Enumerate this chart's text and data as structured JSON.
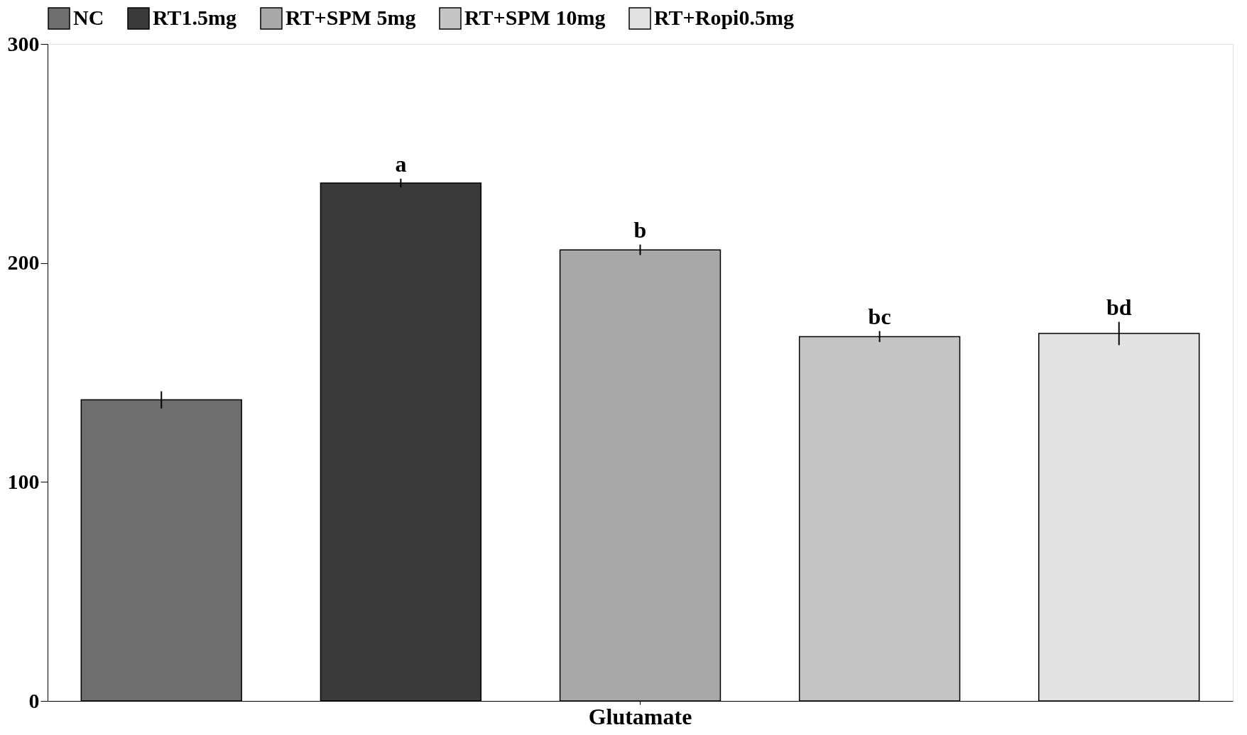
{
  "chart_data": {
    "type": "bar",
    "categories": [
      "Glutamate"
    ],
    "series": [
      {
        "name": "NC",
        "color": "#6e6e6e",
        "values": [
          137.5
        ],
        "errors": [
          3.9
        ]
      },
      {
        "name": "RT1.5mg",
        "color": "#3a3a3a",
        "values": [
          236.5
        ],
        "errors": [
          2
        ],
        "value_labels": [
          "a"
        ]
      },
      {
        "name": "RT+SPM 5mg",
        "color": "#a8a8a8",
        "values": [
          206
        ],
        "errors": [
          2.4
        ],
        "value_labels": [
          "b"
        ]
      },
      {
        "name": "RT+SPM 10mg",
        "color": "#c4c4c4",
        "values": [
          166.4
        ],
        "errors": [
          2.5
        ],
        "value_labels": [
          "bc"
        ]
      },
      {
        "name": "RT+Ropi0.5mg",
        "color": "#e2e2e2",
        "values": [
          167.8
        ],
        "errors": [
          5.3
        ],
        "value_labels": [
          "bd"
        ]
      }
    ],
    "ylim": [
      0,
      300
    ],
    "yticks": [
      0,
      100,
      200,
      300
    ],
    "grid": false,
    "legend": "top"
  }
}
